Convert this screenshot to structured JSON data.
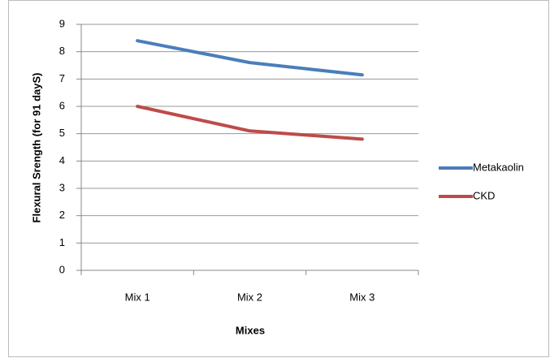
{
  "chart_data": {
    "type": "line",
    "x_label": "Mixes",
    "y_label": "Flexural Srength (for 91 dayS)",
    "categories": [
      "Mix 1",
      "Mix 2",
      "Mix 3"
    ],
    "series": [
      {
        "name": "Metakaolin",
        "color": "#4a7ebb",
        "values": [
          8.4,
          7.6,
          7.15
        ]
      },
      {
        "name": "CKD",
        "color": "#be4b48",
        "values": [
          6.0,
          5.1,
          4.8
        ]
      }
    ],
    "ylim": [
      0,
      9
    ],
    "yticks": [
      0,
      1,
      2,
      3,
      4,
      5,
      6,
      7,
      8,
      9
    ],
    "grid": true,
    "legend": "right"
  }
}
